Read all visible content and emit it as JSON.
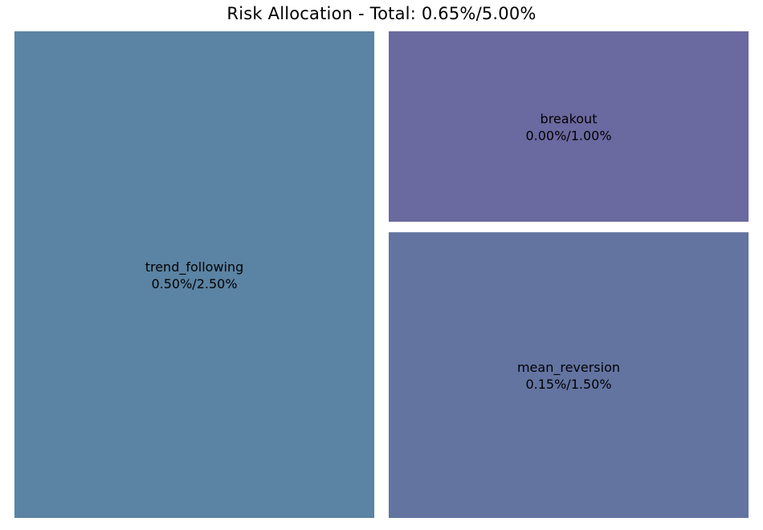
{
  "chart_data": {
    "type": "treemap",
    "title": "Risk Allocation - Total: 0.65%/5.00%",
    "units": "%",
    "tiles": [
      {
        "name": "trend_following",
        "used": 0.5,
        "limit": 2.5,
        "label_value": "0.50%/2.50%",
        "color": "#5b83a3"
      },
      {
        "name": "breakout",
        "used": 0.0,
        "limit": 1.0,
        "label_value": "0.00%/1.00%",
        "color": "#6a69a0"
      },
      {
        "name": "mean_reversion",
        "used": 0.15,
        "limit": 1.5,
        "label_value": "0.15%/1.50%",
        "color": "#6374a1"
      }
    ]
  }
}
